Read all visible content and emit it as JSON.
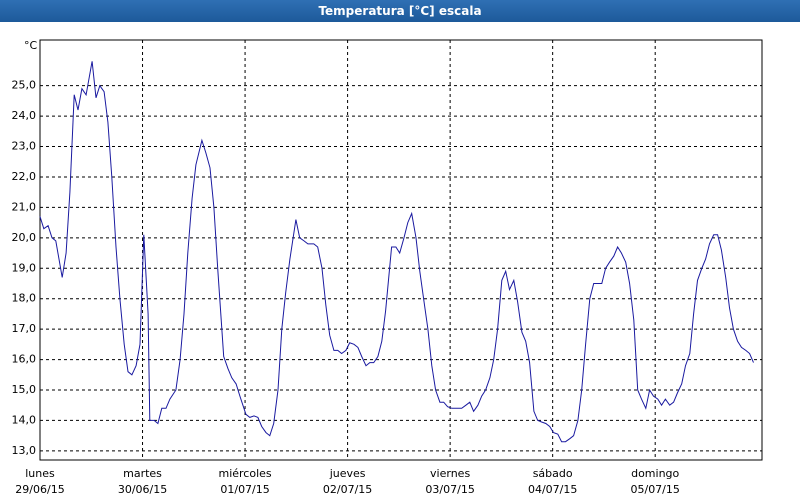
{
  "window_title": "Temperatura [°C] escala",
  "chart_data": {
    "type": "line",
    "y_unit": "°C",
    "color": "#1a1aa0",
    "grid": true,
    "xlim": [
      0,
      169
    ],
    "ylim": [
      12.7,
      26.5
    ],
    "xticks": [
      {
        "value": 0,
        "label": "lunes",
        "date": "29/06/15"
      },
      {
        "value": 24,
        "label": "martes",
        "date": "30/06/15"
      },
      {
        "value": 48,
        "label": "miércoles",
        "date": "01/07/15"
      },
      {
        "value": 72,
        "label": "jueves",
        "date": "02/07/15"
      },
      {
        "value": 96,
        "label": "viernes",
        "date": "03/07/15"
      },
      {
        "value": 120,
        "label": "sábado",
        "date": "04/07/15"
      },
      {
        "value": 144,
        "label": "domingo",
        "date": "05/07/15"
      }
    ],
    "yticks": [
      {
        "value": 13,
        "label": "13,0"
      },
      {
        "value": 14,
        "label": "14,0"
      },
      {
        "value": 15,
        "label": "15,0"
      },
      {
        "value": 16,
        "label": "16,0"
      },
      {
        "value": 17,
        "label": "17,0"
      },
      {
        "value": 18,
        "label": "18,0"
      },
      {
        "value": 19,
        "label": "19,0"
      },
      {
        "value": 20,
        "label": "20,0"
      },
      {
        "value": 21,
        "label": "21,0"
      },
      {
        "value": 22,
        "label": "22,0"
      },
      {
        "value": 23,
        "label": "23,0"
      },
      {
        "value": 24,
        "label": "24,0"
      },
      {
        "value": 25,
        "label": "25,0"
      }
    ],
    "x": [
      0,
      0.9,
      1.9,
      2.8,
      3.7,
      5.2,
      6.1,
      7.0,
      8.0,
      8.9,
      9.8,
      10.8,
      12.2,
      13.1,
      14.0,
      15.0,
      15.9,
      16.8,
      17.8,
      18.7,
      19.7,
      20.6,
      21.5,
      22.5,
      23.4,
      24.3,
      25.3,
      25.7,
      26.7,
      27.6,
      28.5,
      29.5,
      30.4,
      31.8,
      32.8,
      33.7,
      34.6,
      35.6,
      36.5,
      37.9,
      38.8,
      39.8,
      40.7,
      41.6,
      43.0,
      44.0,
      44.9,
      45.9,
      46.8,
      48.2,
      49.1,
      50.1,
      51.0,
      51.9,
      52.9,
      53.8,
      54.7,
      55.7,
      56.6,
      57.5,
      58.5,
      59.9,
      60.8,
      61.8,
      62.7,
      64.1,
      65.0,
      66.0,
      66.9,
      67.8,
      68.8,
      69.7,
      70.6,
      71.6,
      72.5,
      73.5,
      74.4,
      75.3,
      76.3,
      77.2,
      78.1,
      79.1,
      80.0,
      80.9,
      82.3,
      83.3,
      84.2,
      85.2,
      86.1,
      87.0,
      88.0,
      88.9,
      89.8,
      90.8,
      91.7,
      92.6,
      93.6,
      94.5,
      95.4,
      96.4,
      97.8,
      98.7,
      99.7,
      100.6,
      101.5,
      102.5,
      103.4,
      104.3,
      105.3,
      106.2,
      107.1,
      108.1,
      109.0,
      109.9,
      110.9,
      111.8,
      112.8,
      113.7,
      114.6,
      115.6,
      116.5,
      117.4,
      118.4,
      119.3,
      120.2,
      121.2,
      122.1,
      123.0,
      124.0,
      124.9,
      125.9,
      126.8,
      127.7,
      128.7,
      129.6,
      130.5,
      131.5,
      132.4,
      133.3,
      134.3,
      135.2,
      136.1,
      137.1,
      138.0,
      139.0,
      139.9,
      140.8,
      141.8,
      142.7,
      143.6,
      144.6,
      145.5,
      146.4,
      147.4,
      148.3,
      149.2,
      150.2,
      151.1,
      152.1,
      153.0,
      153.9,
      154.9,
      155.8,
      156.7,
      157.7,
      158.6,
      159.5,
      160.5,
      161.4,
      162.3,
      163.3,
      164.2,
      165.2,
      166.1,
      167.0
    ],
    "values": [
      20.7,
      20.3,
      20.4,
      20.0,
      19.9,
      18.7,
      19.5,
      21.5,
      24.7,
      24.2,
      24.9,
      24.7,
      25.8,
      24.6,
      25.0,
      24.8,
      23.8,
      22.0,
      19.7,
      18.0,
      16.5,
      15.6,
      15.5,
      15.8,
      16.5,
      20.1,
      17.5,
      14.0,
      14.0,
      13.9,
      14.4,
      14.4,
      14.7,
      15.0,
      16.0,
      17.5,
      19.5,
      21.3,
      22.4,
      23.2,
      22.8,
      22.3,
      21.0,
      19.0,
      16.1,
      15.7,
      15.4,
      15.2,
      14.8,
      14.2,
      14.1,
      14.15,
      14.1,
      13.8,
      13.6,
      13.5,
      13.9,
      15.0,
      17.0,
      18.2,
      19.3,
      20.6,
      20.0,
      19.9,
      19.8,
      19.8,
      19.7,
      19.0,
      17.8,
      16.8,
      16.3,
      16.3,
      16.2,
      16.3,
      16.55,
      16.5,
      16.4,
      16.1,
      15.8,
      15.9,
      15.9,
      16.1,
      16.6,
      17.6,
      19.7,
      19.7,
      19.5,
      20.0,
      20.5,
      20.8,
      20.0,
      18.9,
      18.0,
      17.0,
      15.8,
      15.0,
      14.6,
      14.6,
      14.45,
      14.4,
      14.4,
      14.4,
      14.5,
      14.6,
      14.3,
      14.5,
      14.8,
      15.0,
      15.4,
      16.0,
      17.0,
      18.6,
      18.9,
      18.3,
      18.6,
      17.9,
      16.9,
      16.6,
      15.9,
      14.3,
      14.0,
      13.95,
      13.9,
      13.8,
      13.6,
      13.55,
      13.3,
      13.3,
      13.4,
      13.5,
      14.0,
      15.0,
      16.5,
      18.0,
      18.5,
      18.5,
      18.5,
      19.0,
      19.2,
      19.4,
      19.7,
      19.5,
      19.2,
      18.5,
      17.3,
      15.0,
      14.7,
      14.4,
      15.0,
      14.8,
      14.7,
      14.5,
      14.7,
      14.5,
      14.6,
      14.9,
      15.2,
      15.8,
      16.2,
      17.5,
      18.6,
      19.0,
      19.3,
      19.8,
      20.1,
      20.1,
      19.6,
      18.7,
      17.7,
      17.0,
      16.6,
      16.4,
      16.3,
      16.2,
      15.9
    ]
  }
}
